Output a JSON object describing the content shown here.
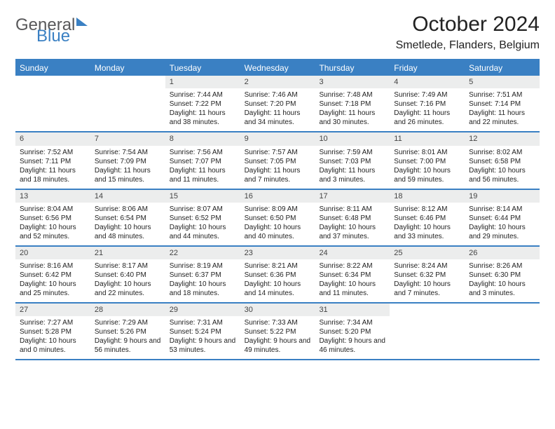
{
  "logo": {
    "general": "General",
    "blue": "Blue"
  },
  "title": "October 2024",
  "location": "Smetlede, Flanders, Belgium",
  "colors": {
    "header_bg": "#3a80c3",
    "daynum_bg": "#eceded",
    "text": "#222222",
    "logo_gray": "#58585a",
    "border": "#3a80c3"
  },
  "days_of_week": [
    "Sunday",
    "Monday",
    "Tuesday",
    "Wednesday",
    "Thursday",
    "Friday",
    "Saturday"
  ],
  "weeks": [
    [
      {
        "n": "",
        "sr": "",
        "ss": "",
        "dl": ""
      },
      {
        "n": "",
        "sr": "",
        "ss": "",
        "dl": ""
      },
      {
        "n": "1",
        "sr": "Sunrise: 7:44 AM",
        "ss": "Sunset: 7:22 PM",
        "dl": "Daylight: 11 hours and 38 minutes."
      },
      {
        "n": "2",
        "sr": "Sunrise: 7:46 AM",
        "ss": "Sunset: 7:20 PM",
        "dl": "Daylight: 11 hours and 34 minutes."
      },
      {
        "n": "3",
        "sr": "Sunrise: 7:48 AM",
        "ss": "Sunset: 7:18 PM",
        "dl": "Daylight: 11 hours and 30 minutes."
      },
      {
        "n": "4",
        "sr": "Sunrise: 7:49 AM",
        "ss": "Sunset: 7:16 PM",
        "dl": "Daylight: 11 hours and 26 minutes."
      },
      {
        "n": "5",
        "sr": "Sunrise: 7:51 AM",
        "ss": "Sunset: 7:14 PM",
        "dl": "Daylight: 11 hours and 22 minutes."
      }
    ],
    [
      {
        "n": "6",
        "sr": "Sunrise: 7:52 AM",
        "ss": "Sunset: 7:11 PM",
        "dl": "Daylight: 11 hours and 18 minutes."
      },
      {
        "n": "7",
        "sr": "Sunrise: 7:54 AM",
        "ss": "Sunset: 7:09 PM",
        "dl": "Daylight: 11 hours and 15 minutes."
      },
      {
        "n": "8",
        "sr": "Sunrise: 7:56 AM",
        "ss": "Sunset: 7:07 PM",
        "dl": "Daylight: 11 hours and 11 minutes."
      },
      {
        "n": "9",
        "sr": "Sunrise: 7:57 AM",
        "ss": "Sunset: 7:05 PM",
        "dl": "Daylight: 11 hours and 7 minutes."
      },
      {
        "n": "10",
        "sr": "Sunrise: 7:59 AM",
        "ss": "Sunset: 7:03 PM",
        "dl": "Daylight: 11 hours and 3 minutes."
      },
      {
        "n": "11",
        "sr": "Sunrise: 8:01 AM",
        "ss": "Sunset: 7:00 PM",
        "dl": "Daylight: 10 hours and 59 minutes."
      },
      {
        "n": "12",
        "sr": "Sunrise: 8:02 AM",
        "ss": "Sunset: 6:58 PM",
        "dl": "Daylight: 10 hours and 56 minutes."
      }
    ],
    [
      {
        "n": "13",
        "sr": "Sunrise: 8:04 AM",
        "ss": "Sunset: 6:56 PM",
        "dl": "Daylight: 10 hours and 52 minutes."
      },
      {
        "n": "14",
        "sr": "Sunrise: 8:06 AM",
        "ss": "Sunset: 6:54 PM",
        "dl": "Daylight: 10 hours and 48 minutes."
      },
      {
        "n": "15",
        "sr": "Sunrise: 8:07 AM",
        "ss": "Sunset: 6:52 PM",
        "dl": "Daylight: 10 hours and 44 minutes."
      },
      {
        "n": "16",
        "sr": "Sunrise: 8:09 AM",
        "ss": "Sunset: 6:50 PM",
        "dl": "Daylight: 10 hours and 40 minutes."
      },
      {
        "n": "17",
        "sr": "Sunrise: 8:11 AM",
        "ss": "Sunset: 6:48 PM",
        "dl": "Daylight: 10 hours and 37 minutes."
      },
      {
        "n": "18",
        "sr": "Sunrise: 8:12 AM",
        "ss": "Sunset: 6:46 PM",
        "dl": "Daylight: 10 hours and 33 minutes."
      },
      {
        "n": "19",
        "sr": "Sunrise: 8:14 AM",
        "ss": "Sunset: 6:44 PM",
        "dl": "Daylight: 10 hours and 29 minutes."
      }
    ],
    [
      {
        "n": "20",
        "sr": "Sunrise: 8:16 AM",
        "ss": "Sunset: 6:42 PM",
        "dl": "Daylight: 10 hours and 25 minutes."
      },
      {
        "n": "21",
        "sr": "Sunrise: 8:17 AM",
        "ss": "Sunset: 6:40 PM",
        "dl": "Daylight: 10 hours and 22 minutes."
      },
      {
        "n": "22",
        "sr": "Sunrise: 8:19 AM",
        "ss": "Sunset: 6:37 PM",
        "dl": "Daylight: 10 hours and 18 minutes."
      },
      {
        "n": "23",
        "sr": "Sunrise: 8:21 AM",
        "ss": "Sunset: 6:36 PM",
        "dl": "Daylight: 10 hours and 14 minutes."
      },
      {
        "n": "24",
        "sr": "Sunrise: 8:22 AM",
        "ss": "Sunset: 6:34 PM",
        "dl": "Daylight: 10 hours and 11 minutes."
      },
      {
        "n": "25",
        "sr": "Sunrise: 8:24 AM",
        "ss": "Sunset: 6:32 PM",
        "dl": "Daylight: 10 hours and 7 minutes."
      },
      {
        "n": "26",
        "sr": "Sunrise: 8:26 AM",
        "ss": "Sunset: 6:30 PM",
        "dl": "Daylight: 10 hours and 3 minutes."
      }
    ],
    [
      {
        "n": "27",
        "sr": "Sunrise: 7:27 AM",
        "ss": "Sunset: 5:28 PM",
        "dl": "Daylight: 10 hours and 0 minutes."
      },
      {
        "n": "28",
        "sr": "Sunrise: 7:29 AM",
        "ss": "Sunset: 5:26 PM",
        "dl": "Daylight: 9 hours and 56 minutes."
      },
      {
        "n": "29",
        "sr": "Sunrise: 7:31 AM",
        "ss": "Sunset: 5:24 PM",
        "dl": "Daylight: 9 hours and 53 minutes."
      },
      {
        "n": "30",
        "sr": "Sunrise: 7:33 AM",
        "ss": "Sunset: 5:22 PM",
        "dl": "Daylight: 9 hours and 49 minutes."
      },
      {
        "n": "31",
        "sr": "Sunrise: 7:34 AM",
        "ss": "Sunset: 5:20 PM",
        "dl": "Daylight: 9 hours and 46 minutes."
      },
      {
        "n": "",
        "sr": "",
        "ss": "",
        "dl": ""
      },
      {
        "n": "",
        "sr": "",
        "ss": "",
        "dl": ""
      }
    ]
  ]
}
